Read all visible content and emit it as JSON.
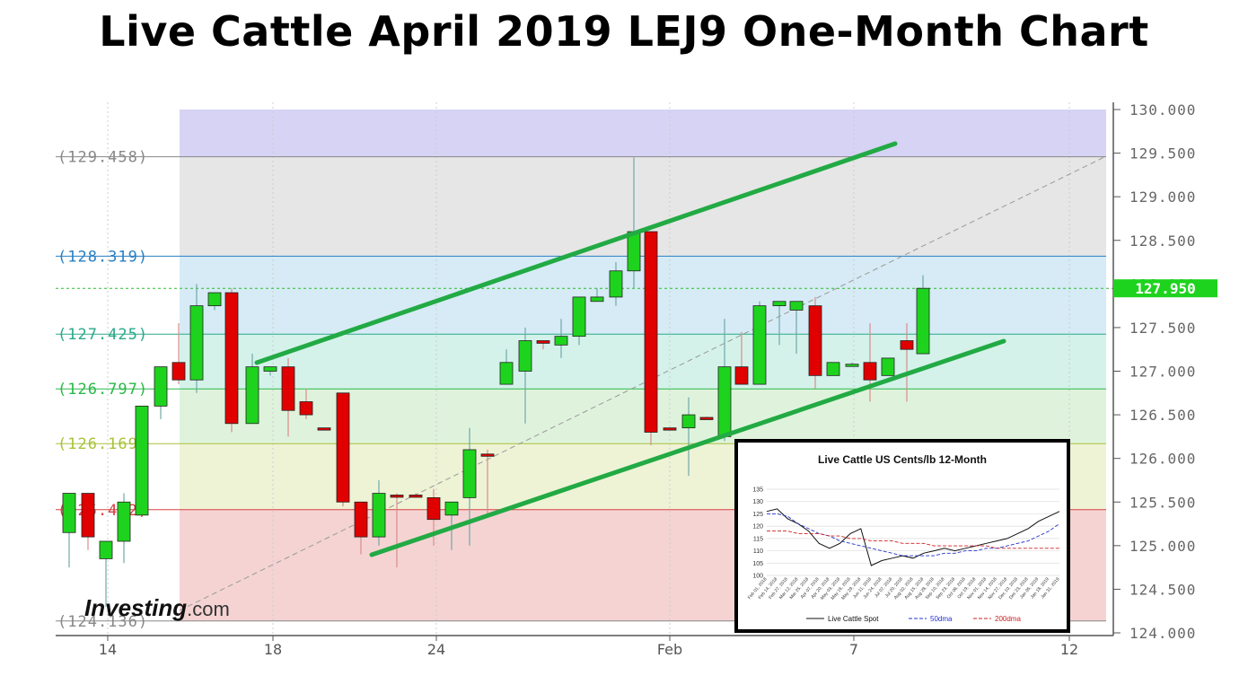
{
  "title": "Live Cattle April 2019 LEJ9  One-Month Chart",
  "watermark": {
    "brand": "Investing",
    "suffix": ".com"
  },
  "colors": {
    "up": "#1ed31e",
    "down": "#e00000",
    "channel": "#22aa44",
    "price_label_bg": "#1ed31e",
    "grid": "#888888"
  },
  "chart_data": [
    {
      "type": "candlestick",
      "title": "Live Cattle April 2019 LEJ9  One-Month Chart",
      "x_ticks": [
        "14",
        "18",
        "24",
        "Feb",
        "7",
        "12"
      ],
      "y_ticks": [
        "130.000",
        "129.500",
        "129.000",
        "128.500",
        "128.000",
        "127.500",
        "127.000",
        "126.500",
        "126.000",
        "125.500",
        "125.000",
        "124.500",
        "124.000"
      ],
      "ylim": [
        124.0,
        130.0
      ],
      "last_price": "127.950",
      "fib_levels": [
        {
          "label": "(129.458)",
          "value": 129.458,
          "color": "#888888"
        },
        {
          "label": "(128.319)",
          "value": 128.319,
          "color": "#2a7fc1"
        },
        {
          "label": "(127.425)",
          "value": 127.425,
          "color": "#2aa98a"
        },
        {
          "label": "(126.797)",
          "value": 126.797,
          "color": "#2cb84a"
        },
        {
          "label": "(126.169)",
          "value": 126.169,
          "color": "#a8c23a"
        },
        {
          "label": "(125.412)",
          "value": 125.412,
          "color": "#d84040"
        },
        {
          "label": "(124.136)",
          "value": 124.136,
          "color": "#888888"
        }
      ],
      "fib_bands": [
        {
          "from": 129.458,
          "to": 130.0,
          "color": "#d6d3f5"
        },
        {
          "from": 128.319,
          "to": 129.458,
          "color": "#e6e6e6"
        },
        {
          "from": 127.425,
          "to": 128.319,
          "color": "#d6ebf5"
        },
        {
          "from": 126.797,
          "to": 127.425,
          "color": "#d4f2ea"
        },
        {
          "from": 126.169,
          "to": 126.797,
          "color": "#dff3dc"
        },
        {
          "from": 125.412,
          "to": 126.169,
          "color": "#eef3d6"
        },
        {
          "from": 124.136,
          "to": 125.412,
          "color": "#f5d3d3"
        }
      ],
      "candles": [
        {
          "x": 77,
          "o": 125.15,
          "h": 125.6,
          "l": 124.75,
          "c": 125.6
        },
        {
          "x": 98,
          "o": 125.6,
          "h": 125.6,
          "l": 124.95,
          "c": 125.1
        },
        {
          "x": 118,
          "o": 124.85,
          "h": 125.05,
          "l": 124.3,
          "c": 125.05
        },
        {
          "x": 138,
          "o": 125.05,
          "h": 125.6,
          "l": 124.8,
          "c": 125.5
        },
        {
          "x": 158,
          "o": 125.35,
          "h": 126.6,
          "l": 125.35,
          "c": 126.6
        },
        {
          "x": 179,
          "o": 126.6,
          "h": 127.05,
          "l": 126.45,
          "c": 127.05
        },
        {
          "x": 199,
          "o": 127.1,
          "h": 127.55,
          "l": 126.85,
          "c": 126.9
        },
        {
          "x": 219,
          "o": 126.9,
          "h": 128.0,
          "l": 126.75,
          "c": 127.75
        },
        {
          "x": 239,
          "o": 127.75,
          "h": 127.9,
          "l": 127.7,
          "c": 127.9
        },
        {
          "x": 258,
          "o": 127.9,
          "h": 127.95,
          "l": 126.3,
          "c": 126.4
        },
        {
          "x": 281,
          "o": 126.4,
          "h": 127.2,
          "l": 126.4,
          "c": 127.05
        },
        {
          "x": 301,
          "o": 127.0,
          "h": 127.05,
          "l": 126.95,
          "c": 127.05
        },
        {
          "x": 321,
          "o": 127.05,
          "h": 127.15,
          "l": 126.25,
          "c": 126.55
        },
        {
          "x": 341,
          "o": 126.65,
          "h": 126.8,
          "l": 126.45,
          "c": 126.5
        },
        {
          "x": 361,
          "o": 126.35,
          "h": 126.35,
          "l": 126.32,
          "c": 126.33
        },
        {
          "x": 382,
          "o": 126.75,
          "h": 126.75,
          "l": 125.45,
          "c": 125.5
        },
        {
          "x": 402,
          "o": 125.5,
          "h": 125.5,
          "l": 124.9,
          "c": 125.1
        },
        {
          "x": 422,
          "o": 125.1,
          "h": 125.75,
          "l": 125.0,
          "c": 125.6
        },
        {
          "x": 442,
          "o": 125.58,
          "h": 125.6,
          "l": 124.75,
          "c": 125.57
        },
        {
          "x": 463,
          "o": 125.58,
          "h": 125.6,
          "l": 125.55,
          "c": 125.57
        },
        {
          "x": 483,
          "o": 125.55,
          "h": 125.65,
          "l": 125.0,
          "c": 125.3
        },
        {
          "x": 503,
          "o": 125.35,
          "h": 125.5,
          "l": 124.95,
          "c": 125.5
        },
        {
          "x": 523,
          "o": 125.55,
          "h": 126.35,
          "l": 125.0,
          "c": 126.1
        },
        {
          "x": 543,
          "o": 126.05,
          "h": 126.1,
          "l": 125.35,
          "c": 126.03
        },
        {
          "x": 564,
          "o": 126.85,
          "h": 127.25,
          "l": 126.85,
          "c": 127.1
        },
        {
          "x": 585,
          "o": 127.0,
          "h": 127.5,
          "l": 126.4,
          "c": 127.35
        },
        {
          "x": 605,
          "o": 127.35,
          "h": 127.35,
          "l": 127.25,
          "c": 127.32
        },
        {
          "x": 625,
          "o": 127.3,
          "h": 127.6,
          "l": 127.15,
          "c": 127.4
        },
        {
          "x": 645,
          "o": 127.4,
          "h": 127.85,
          "l": 127.3,
          "c": 127.85
        },
        {
          "x": 665,
          "o": 127.8,
          "h": 127.95,
          "l": 127.8,
          "c": 127.85
        },
        {
          "x": 686,
          "o": 127.85,
          "h": 128.25,
          "l": 127.75,
          "c": 128.15
        },
        {
          "x": 706,
          "o": 128.15,
          "h": 129.45,
          "l": 127.95,
          "c": 128.6
        },
        {
          "x": 725,
          "o": 128.6,
          "h": 128.6,
          "l": 126.15,
          "c": 126.3
        },
        {
          "x": 746,
          "o": 126.35,
          "h": 126.35,
          "l": 126.33,
          "c": 126.34
        },
        {
          "x": 767,
          "o": 126.35,
          "h": 126.7,
          "l": 125.8,
          "c": 126.5
        },
        {
          "x": 787,
          "o": 126.47,
          "h": 126.48,
          "l": 126.45,
          "c": 126.46
        },
        {
          "x": 807,
          "o": 126.25,
          "h": 127.6,
          "l": 126.2,
          "c": 127.05
        },
        {
          "x": 826,
          "o": 127.05,
          "h": 127.45,
          "l": 126.85,
          "c": 126.85
        },
        {
          "x": 846,
          "o": 126.85,
          "h": 127.8,
          "l": 126.85,
          "c": 127.75
        },
        {
          "x": 868,
          "o": 127.75,
          "h": 127.8,
          "l": 127.3,
          "c": 127.8
        },
        {
          "x": 887,
          "o": 127.7,
          "h": 127.8,
          "l": 127.2,
          "c": 127.8
        },
        {
          "x": 908,
          "o": 127.75,
          "h": 127.85,
          "l": 126.8,
          "c": 126.95
        },
        {
          "x": 928,
          "o": 126.95,
          "h": 127.1,
          "l": 126.95,
          "c": 127.1
        },
        {
          "x": 949,
          "o": 127.08,
          "h": 127.1,
          "l": 127.07,
          "c": 127.08
        },
        {
          "x": 969,
          "o": 127.1,
          "h": 127.55,
          "l": 126.65,
          "c": 126.9
        },
        {
          "x": 989,
          "o": 126.95,
          "h": 127.15,
          "l": 126.95,
          "c": 127.15
        },
        {
          "x": 1010,
          "o": 127.35,
          "h": 127.55,
          "l": 126.65,
          "c": 127.25
        },
        {
          "x": 1028,
          "o": 127.2,
          "h": 128.1,
          "l": 127.2,
          "c": 127.95
        }
      ]
    },
    {
      "type": "line",
      "title": "Live Cattle US Cents/lb  12-Month",
      "y_ticks": [
        "135",
        "130",
        "125",
        "120",
        "115",
        "110",
        "105",
        "100"
      ],
      "ylim": [
        100,
        135
      ],
      "x_ticks": [
        "Feb 01, 2018",
        "Feb 14, 2018",
        "Feb 27, 2018",
        "Mar 12, 2018",
        "Mar 25, 2018",
        "Apr 07, 2018",
        "Apr 20, 2018",
        "May 03, 2018",
        "May 16, 2018",
        "May 29, 2018",
        "Jun 11, 2018",
        "Jun 24, 2018",
        "Jul 07, 2018",
        "Jul 20, 2018",
        "Aug 02, 2018",
        "Aug 15, 2018",
        "Aug 28, 2018",
        "Sep 10, 2018",
        "Sep 23, 2018",
        "Oct 06, 2018",
        "Oct 19, 2018",
        "Nov 01, 2018",
        "Nov 14, 2018",
        "Nov 27, 2018",
        "Dec 10, 2018",
        "Dec 23, 2018",
        "Jan 05, 2019",
        "Jan 18, 2019",
        "Jan 31, 2019"
      ],
      "legend": [
        "Live Cattle Spot",
        "50dma",
        "200dma"
      ],
      "series": [
        {
          "name": "Live Cattle Spot",
          "color": "#111111",
          "values": [
            126,
            127,
            123,
            121,
            118,
            113,
            111,
            113,
            117,
            119,
            104,
            106,
            107,
            108,
            107,
            109,
            110,
            111,
            110,
            111,
            112,
            113,
            114,
            115,
            117,
            119,
            122,
            124,
            126
          ]
        },
        {
          "name": "50dma",
          "color": "#2233cc",
          "values": [
            125,
            125,
            124,
            121,
            119,
            117,
            116,
            114,
            113,
            112,
            111,
            110,
            109,
            108,
            108,
            108,
            108,
            109,
            109,
            110,
            110,
            111,
            111,
            112,
            113,
            114,
            116,
            118,
            121
          ]
        },
        {
          "name": "200dma",
          "color": "#cc2222",
          "values": [
            118,
            118,
            118,
            117,
            117,
            117,
            116,
            116,
            115,
            115,
            114,
            114,
            114,
            113,
            113,
            113,
            112,
            112,
            112,
            112,
            112,
            112,
            111,
            111,
            111,
            111,
            111,
            111,
            111
          ]
        }
      ]
    }
  ]
}
